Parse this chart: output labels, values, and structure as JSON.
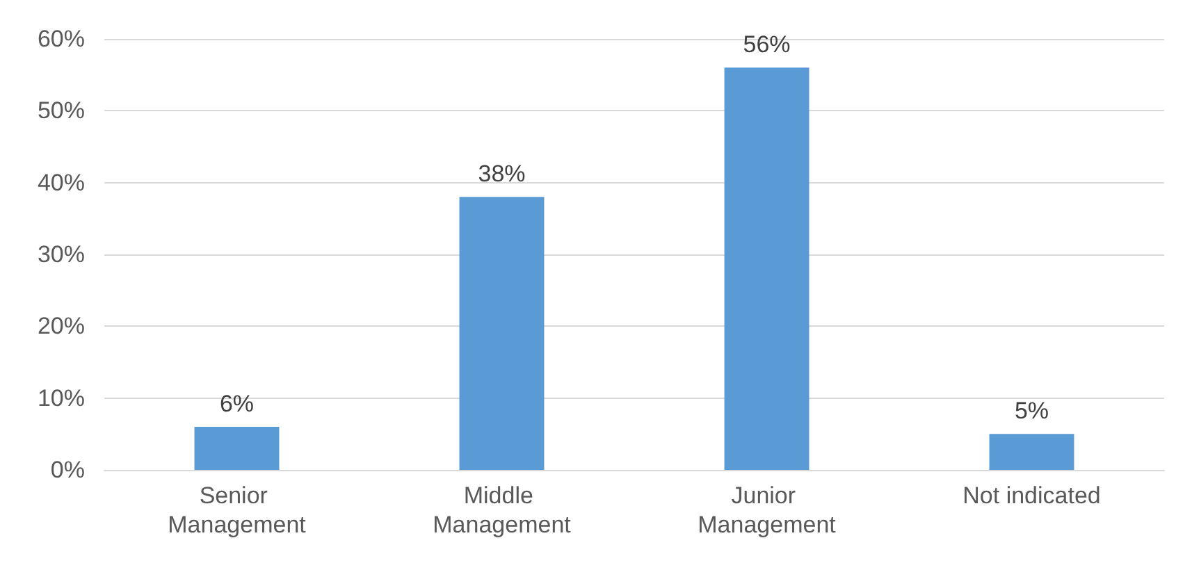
{
  "chart_data": {
    "type": "bar",
    "categories": [
      "Senior Management",
      "Middle Management",
      "Junior Management",
      "Not indicated"
    ],
    "values": [
      6,
      38,
      56,
      5
    ],
    "value_labels": [
      "6%",
      "38%",
      "56%",
      "5%"
    ],
    "color": "#5b9bd5",
    "ylim": [
      0,
      60
    ],
    "yticks": [
      {
        "value": 0,
        "label": "0%"
      },
      {
        "value": 10,
        "label": "10%"
      },
      {
        "value": 20,
        "label": "20%"
      },
      {
        "value": 30,
        "label": "30%"
      },
      {
        "value": 40,
        "label": "40%"
      },
      {
        "value": 50,
        "label": "50%"
      },
      {
        "value": 60,
        "label": "60%"
      }
    ],
    "grid": "y"
  }
}
